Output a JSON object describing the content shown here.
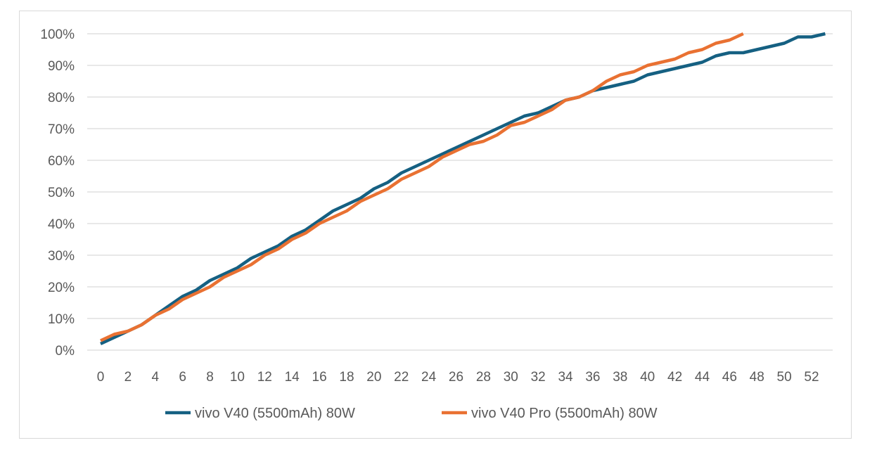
{
  "chart_data": {
    "type": "line",
    "title": "",
    "xlabel": "",
    "ylabel": "",
    "xlim": [
      0,
      54
    ],
    "ylim": [
      0,
      100
    ],
    "grid": true,
    "legend_position": "bottom",
    "x_ticks": [
      "0",
      "2",
      "4",
      "6",
      "8",
      "10",
      "12",
      "14",
      "16",
      "18",
      "20",
      "22",
      "24",
      "26",
      "28",
      "30",
      "32",
      "34",
      "36",
      "38",
      "40",
      "42",
      "44",
      "46",
      "48",
      "50",
      "52"
    ],
    "y_ticks": [
      "0%",
      "10%",
      "20%",
      "30%",
      "40%",
      "50%",
      "60%",
      "70%",
      "80%",
      "90%",
      "100%"
    ],
    "series": [
      {
        "name": "vivo V40 (5500mAh) 80W",
        "color": "#156082",
        "values": [
          2,
          4,
          6,
          8,
          11,
          14,
          17,
          19,
          22,
          24,
          26,
          29,
          31,
          33,
          36,
          38,
          41,
          44,
          46,
          48,
          51,
          53,
          56,
          58,
          60,
          62,
          64,
          66,
          68,
          70,
          72,
          74,
          75,
          77,
          79,
          80,
          82,
          83,
          84,
          85,
          87,
          88,
          89,
          90,
          91,
          93,
          94,
          94,
          95,
          96,
          97,
          99,
          99,
          100
        ]
      },
      {
        "name": "vivo V40 Pro (5500mAh) 80W",
        "color": "#E97132",
        "values": [
          3,
          5,
          6,
          8,
          11,
          13,
          16,
          18,
          20,
          23,
          25,
          27,
          30,
          32,
          35,
          37,
          40,
          42,
          44,
          47,
          49,
          51,
          54,
          56,
          58,
          61,
          63,
          65,
          66,
          68,
          71,
          72,
          74,
          76,
          79,
          80,
          82,
          85,
          87,
          88,
          90,
          91,
          92,
          94,
          95,
          97,
          98,
          100
        ]
      }
    ]
  }
}
